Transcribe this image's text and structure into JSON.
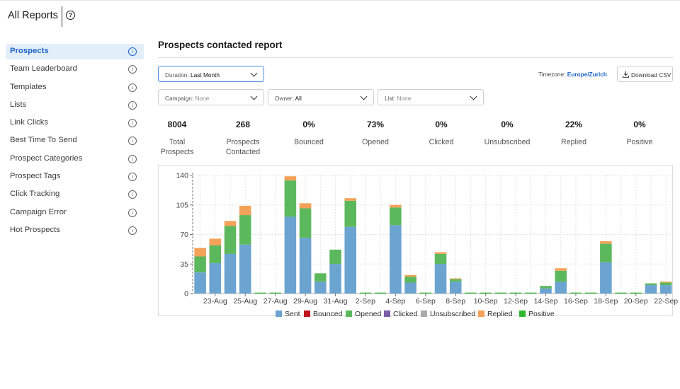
{
  "header": {
    "title": "All Reports",
    "help_glyph": "?"
  },
  "sidebar": {
    "items": [
      {
        "label": "Prospects",
        "active": true
      },
      {
        "label": "Team Leaderboard"
      },
      {
        "label": "Templates"
      },
      {
        "label": "Lists"
      },
      {
        "label": "Link Clicks"
      },
      {
        "label": "Best Time To Send"
      },
      {
        "label": "Prospect Categories"
      },
      {
        "label": "Prospect Tags"
      },
      {
        "label": "Click Tracking"
      },
      {
        "label": "Campaign Error"
      },
      {
        "label": "Hot Prospects"
      }
    ],
    "info_icon": "info-icon",
    "info_glyph": "i"
  },
  "report": {
    "title": "Prospects contacted report",
    "duration": {
      "label": "Duration:",
      "value": "Last Month"
    },
    "campaign": {
      "label": "Campaign:",
      "value": "None"
    },
    "owner": {
      "label": "Owner:",
      "value": "All"
    },
    "list": {
      "label": "List:",
      "value": "None"
    },
    "timezone": {
      "label": "Timezone:",
      "value": "Europe/Zurich"
    },
    "download_label": "Download CSV"
  },
  "stats": [
    {
      "value": "8004",
      "label": "Total\nProspects"
    },
    {
      "value": "268",
      "label": "Prospects\nContacted"
    },
    {
      "value": "0%",
      "label": "Bounced"
    },
    {
      "value": "73%",
      "label": "Opened"
    },
    {
      "value": "0%",
      "label": "Clicked"
    },
    {
      "value": "0%",
      "label": "Unsubscribed"
    },
    {
      "value": "22%",
      "label": "Replied"
    },
    {
      "value": "0%",
      "label": "Positive"
    }
  ],
  "colors": {
    "accent": "#1b63c6",
    "active_bg": "#e3eefb"
  },
  "chart_data": {
    "type": "bar",
    "stacked": true,
    "categories": [
      "22-Aug",
      "23-Aug",
      "24-Aug",
      "25-Aug",
      "26-Aug",
      "27-Aug",
      "28-Aug",
      "29-Aug",
      "30-Aug",
      "31-Aug",
      "1-Sep",
      "2-Sep",
      "3-Sep",
      "4-Sep",
      "5-Sep",
      "6-Sep",
      "7-Sep",
      "8-Sep",
      "9-Sep",
      "10-Sep",
      "11-Sep",
      "12-Sep",
      "13-Sep",
      "14-Sep",
      "15-Sep",
      "16-Sep",
      "17-Sep",
      "18-Sep",
      "19-Sep",
      "20-Sep",
      "21-Sep",
      "22-Sep"
    ],
    "tick_labels": [
      "23-Aug",
      "25-Aug",
      "27-Aug",
      "29-Aug",
      "31-Aug",
      "2-Sep",
      "4-Sep",
      "6-Sep",
      "8-Sep",
      "10-Sep",
      "12-Sep",
      "14-Sep",
      "16-Sep",
      "18-Sep",
      "20-Sep",
      "22-Sep"
    ],
    "series": [
      {
        "name": "Sent",
        "color": "#6ba3d1",
        "values": [
          25,
          36,
          47,
          58,
          0,
          0,
          91,
          66,
          14,
          35,
          79,
          0,
          0,
          81,
          13,
          0,
          35,
          14,
          0,
          0,
          0,
          0,
          0,
          6,
          14,
          0,
          0,
          37,
          0,
          0,
          10,
          10
        ]
      },
      {
        "name": "Bounced",
        "color": "#c1121f",
        "values": [
          0,
          0,
          0,
          0,
          0,
          0,
          0,
          0,
          0,
          0,
          0,
          0,
          0,
          0,
          0,
          0,
          0,
          0,
          0,
          0,
          0,
          0,
          0,
          0,
          0,
          0,
          0,
          0,
          0,
          0,
          0,
          0
        ]
      },
      {
        "name": "Opened",
        "color": "#5cb85c",
        "values": [
          19,
          21,
          33,
          35,
          0,
          0,
          43,
          35,
          10,
          17,
          31,
          0,
          0,
          21,
          7,
          0,
          12,
          3,
          0,
          0,
          0,
          0,
          0,
          3,
          13,
          0,
          0,
          22,
          0,
          0,
          2,
          3
        ]
      },
      {
        "name": "Clicked",
        "color": "#7b5ea7",
        "values": [
          0,
          0,
          0,
          0,
          0,
          0,
          0,
          0,
          0,
          0,
          0,
          0,
          0,
          0,
          0,
          0,
          0,
          0,
          0,
          0,
          0,
          0,
          0,
          0,
          0,
          0,
          0,
          0,
          0,
          0,
          0,
          0
        ]
      },
      {
        "name": "Unsubscribed",
        "color": "#a9a9a9",
        "values": [
          0,
          0,
          0,
          0,
          0,
          0,
          0,
          0,
          0,
          0,
          0,
          0,
          0,
          0,
          0,
          0,
          0,
          0,
          0,
          0,
          0,
          0,
          0,
          0,
          0,
          0,
          0,
          0,
          0,
          0,
          0,
          0
        ]
      },
      {
        "name": "Replied",
        "color": "#f4a259",
        "values": [
          10,
          8,
          6,
          11,
          0,
          0,
          5,
          6,
          0,
          0,
          3,
          0,
          0,
          3,
          2,
          0,
          2,
          1,
          0,
          0,
          0,
          0,
          0,
          0,
          3,
          0,
          0,
          3,
          0,
          0,
          0,
          1
        ]
      },
      {
        "name": "Positive",
        "color": "#2eb82e",
        "values": [
          0,
          0,
          0,
          0,
          0,
          0,
          0,
          0,
          0,
          0,
          0,
          0,
          0,
          0,
          0,
          0,
          0,
          0,
          0,
          0,
          0,
          0,
          0,
          0,
          0,
          0,
          0,
          0,
          0,
          0,
          0,
          0
        ]
      }
    ],
    "yticks": [
      0,
      35,
      70,
      105,
      140
    ],
    "ylim": [
      0,
      140
    ],
    "grid": true,
    "legend_position": "bottom"
  }
}
